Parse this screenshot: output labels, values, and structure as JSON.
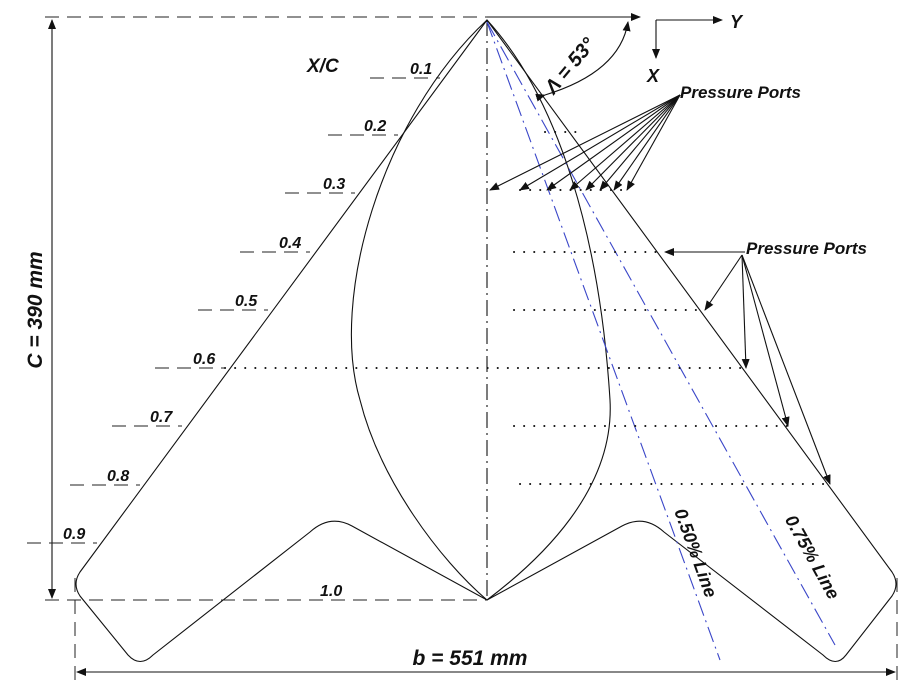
{
  "labels": {
    "chord": "C = 390 mm",
    "span": "b = 551 mm",
    "sweep": "Λ = 53°",
    "axis_x": "X",
    "axis_y": "Y",
    "xc": "X/C",
    "pressure_ports_top": "Pressure Ports",
    "pressure_ports_right": "Pressure Ports",
    "line_50": "0.50% Line",
    "line_75": "0.75% Line"
  },
  "stations": [
    "0.1",
    "0.2",
    "0.3",
    "0.4",
    "0.5",
    "0.6",
    "0.7",
    "0.8",
    "0.9",
    "1.0"
  ]
}
